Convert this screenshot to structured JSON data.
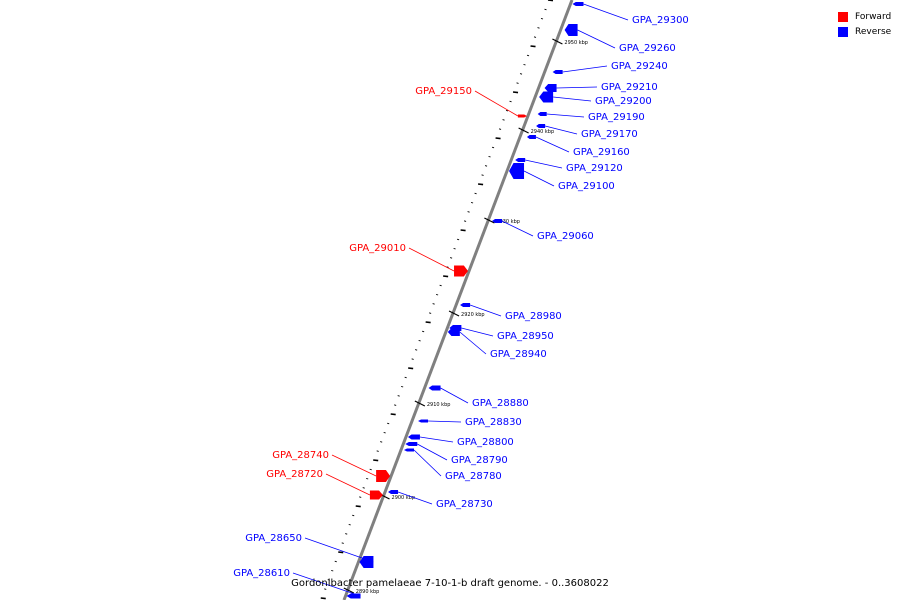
{
  "legend": [
    {
      "label": "Forward",
      "color": "#ff0000"
    },
    {
      "label": "Reverse",
      "color": "#0000ff"
    }
  ],
  "caption": "Gordonibacter pamelaeae 7-10-1-b draft genome. - 0..3608022",
  "strand_colors": {
    "forward": "#ff0000",
    "reverse": "#0000ff",
    "axis": "#808080"
  },
  "ticks": [
    "2950 kbp",
    "2940 kbp",
    "2930 kbp",
    "2920 kbp",
    "2910 kbp",
    "2900 kbp",
    "2890 kbp"
  ],
  "genes": [
    {
      "id": "GPA_29300",
      "strand": "reverse"
    },
    {
      "id": "GPA_29260",
      "strand": "reverse"
    },
    {
      "id": "GPA_29240",
      "strand": "reverse"
    },
    {
      "id": "GPA_29210",
      "strand": "reverse"
    },
    {
      "id": "GPA_29200",
      "strand": "reverse"
    },
    {
      "id": "GPA_29190",
      "strand": "reverse"
    },
    {
      "id": "GPA_29170",
      "strand": "reverse"
    },
    {
      "id": "GPA_29160",
      "strand": "reverse"
    },
    {
      "id": "GPA_29120",
      "strand": "reverse"
    },
    {
      "id": "GPA_29100",
      "strand": "reverse"
    },
    {
      "id": "GPA_29060",
      "strand": "reverse"
    },
    {
      "id": "GPA_28980",
      "strand": "reverse"
    },
    {
      "id": "GPA_28950",
      "strand": "reverse"
    },
    {
      "id": "GPA_28940",
      "strand": "reverse"
    },
    {
      "id": "GPA_28880",
      "strand": "reverse"
    },
    {
      "id": "GPA_28830",
      "strand": "reverse"
    },
    {
      "id": "GPA_28800",
      "strand": "reverse"
    },
    {
      "id": "GPA_28790",
      "strand": "reverse"
    },
    {
      "id": "GPA_28780",
      "strand": "reverse"
    },
    {
      "id": "GPA_28730",
      "strand": "reverse"
    },
    {
      "id": "GPA_28650",
      "strand": "reverse"
    },
    {
      "id": "GPA_28610",
      "strand": "reverse"
    },
    {
      "id": "GPA_29150",
      "strand": "forward"
    },
    {
      "id": "GPA_29010",
      "strand": "forward"
    },
    {
      "id": "GPA_28740",
      "strand": "forward"
    },
    {
      "id": "GPA_28720",
      "strand": "forward"
    }
  ]
}
